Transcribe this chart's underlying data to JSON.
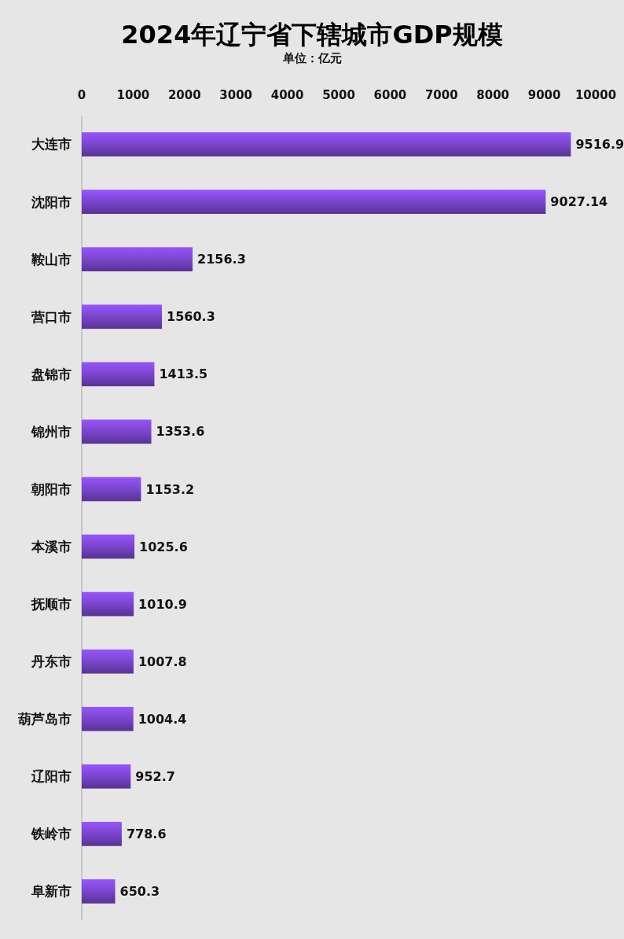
{
  "chart_data": {
    "type": "bar",
    "orientation": "horizontal",
    "title": "2024年辽宁省下辖城市GDP规模",
    "subtitle": "单位：亿元",
    "categories": [
      "大连市",
      "沈阳市",
      "鞍山市",
      "营口市",
      "盘锦市",
      "锦州市",
      "朝阳市",
      "本溪市",
      "抚顺市",
      "丹东市",
      "葫芦岛市",
      "辽阳市",
      "铁岭市",
      "阜新市"
    ],
    "values": [
      9516.9,
      9027.14,
      2156.3,
      1560.3,
      1413.5,
      1353.6,
      1153.2,
      1025.6,
      1010.9,
      1007.8,
      1004.4,
      952.7,
      778.6,
      650.3
    ],
    "color": "#7a45cc",
    "xlim": [
      0,
      10000
    ],
    "xticks": [
      0,
      1000,
      2000,
      3000,
      4000,
      5000,
      6000,
      7000,
      8000,
      9000,
      10000
    ],
    "grid": false,
    "data_labels": true
  }
}
